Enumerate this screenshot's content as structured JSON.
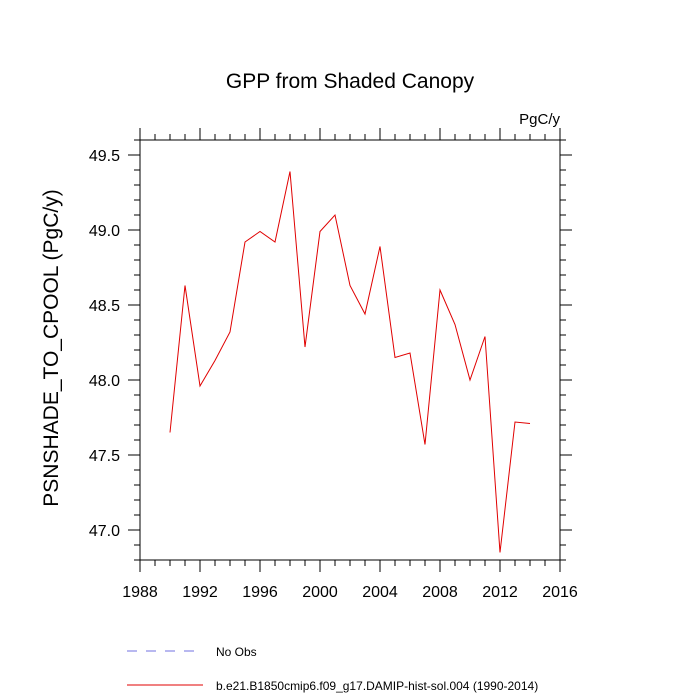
{
  "chart_data": {
    "type": "line",
    "title": "GPP from Shaded Canopy",
    "units_label": "PgC/y",
    "ylabel": "PSNSHADE_TO_CPOOL  (PgC/y)",
    "xlabel": "",
    "xlim": [
      1988,
      2016
    ],
    "ylim": [
      46.8,
      49.6
    ],
    "xticks": [
      1988,
      1992,
      1996,
      2000,
      2004,
      2008,
      2012,
      2016
    ],
    "yticks": [
      47.0,
      47.5,
      48.0,
      48.5,
      49.0,
      49.5
    ],
    "xtick_labels": [
      "1988",
      "1992",
      "1996",
      "2000",
      "2004",
      "2008",
      "2012",
      "2016"
    ],
    "ytick_labels": [
      "47.0",
      "47.5",
      "48.0",
      "48.5",
      "49.0",
      "49.5"
    ],
    "grid": false,
    "legend_placement": "bottom-left",
    "series": [
      {
        "name": "b.e21.B1850cmip6.f09_g17.DAMIP-hist-sol.004 (1990-2014)",
        "color": "#e00000",
        "dash": "solid",
        "x": [
          1990,
          1991,
          1992,
          1993,
          1994,
          1995,
          1996,
          1997,
          1998,
          1999,
          2000,
          2001,
          2002,
          2003,
          2004,
          2005,
          2006,
          2007,
          2008,
          2009,
          2010,
          2011,
          2012,
          2013,
          2014
        ],
        "y": [
          47.65,
          48.63,
          47.96,
          48.13,
          48.32,
          48.92,
          48.99,
          48.92,
          49.39,
          48.22,
          48.99,
          49.1,
          48.63,
          48.44,
          48.89,
          48.15,
          48.18,
          47.57,
          48.6,
          48.37,
          48.0,
          48.29,
          46.85,
          47.72,
          47.71
        ]
      },
      {
        "name": "No Obs",
        "color": "#7070e0",
        "dash": "dashed",
        "x": [],
        "y": []
      }
    ]
  }
}
